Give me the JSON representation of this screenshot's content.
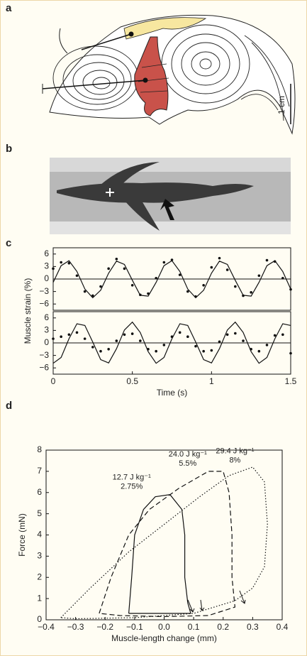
{
  "panels": [
    "a",
    "b",
    "c",
    "d"
  ],
  "scale_label": "1 cm",
  "chart_data": [
    {
      "type": "line",
      "y_label": "Muscle strain (%)",
      "x": [
        0,
        0.05,
        0.1,
        0.15,
        0.2,
        0.25,
        0.3,
        0.35,
        0.4,
        0.45,
        0.5,
        0.55,
        0.6,
        0.65,
        0.7,
        0.75,
        0.8,
        0.85,
        0.9,
        0.95,
        1.0,
        1.05,
        1.1,
        1.15,
        1.2,
        1.25,
        1.3,
        1.35,
        1.4,
        1.45,
        1.5
      ],
      "xlim": [
        0,
        1.5
      ],
      "ylim": [
        -7.5,
        7.5
      ],
      "yticks": [
        6,
        3,
        0,
        {
          "value": -3,
          "label": "−3"
        },
        {
          "value": -6,
          "label": "−6"
        }
      ],
      "zero_line": true,
      "series": [
        {
          "style": "line",
          "color": "#111",
          "values": [
            -0.8,
            3.2,
            4.4,
            1.8,
            -2.4,
            -4.5,
            -2.7,
            1.4,
            4.3,
            3.5,
            -0.3,
            -3.9,
            -4.1,
            -0.8,
            3.2,
            4.4,
            1.8,
            -2.4,
            -4.5,
            -2.7,
            1.4,
            4.3,
            3.5,
            -0.3,
            -3.9,
            -4.1,
            -0.8,
            3.2,
            4.4,
            1.8,
            -2.4
          ]
        },
        {
          "style": "dots",
          "color": "#111",
          "values": [
            2.5,
            4.0,
            3.8,
            0.8,
            -3.0,
            -4.0,
            -1.8,
            2.5,
            4.8,
            2.5,
            -1.5,
            -3.8,
            -3.5,
            0.2,
            4.0,
            4.6,
            1.0,
            -3.0,
            -4.2,
            -1.5,
            2.8,
            5.0,
            2.2,
            -1.8,
            -4.0,
            -3.2,
            0.8,
            4.5,
            4.2,
            0.2,
            -2.5
          ]
        }
      ]
    },
    {
      "type": "line",
      "x_label": "Time (s)",
      "x": [
        0,
        0.05,
        0.1,
        0.15,
        0.2,
        0.25,
        0.3,
        0.35,
        0.4,
        0.45,
        0.5,
        0.55,
        0.6,
        0.65,
        0.7,
        0.75,
        0.8,
        0.85,
        0.9,
        0.95,
        1.0,
        1.05,
        1.1,
        1.15,
        1.2,
        1.25,
        1.3,
        1.35,
        1.4,
        1.45,
        1.5
      ],
      "xlim": [
        0,
        1.5
      ],
      "xticks": [
        0,
        0.5,
        1,
        1.5
      ],
      "ylim": [
        -7.5,
        7.5
      ],
      "yticks": [
        6,
        3,
        0,
        {
          "value": -3,
          "label": "−3"
        },
        {
          "value": -6,
          "label": "−6"
        }
      ],
      "zero_line": true,
      "series": [
        {
          "style": "line",
          "color": "#111",
          "values": [
            -4.9,
            -3.5,
            1.0,
            4.6,
            4.2,
            0.2,
            -4.0,
            -4.8,
            -1.4,
            3.1,
            5.0,
            2.5,
            -2.1,
            -4.9,
            -3.5,
            1.0,
            4.6,
            4.2,
            0.2,
            -4.0,
            -4.8,
            -1.4,
            3.1,
            5.0,
            2.5,
            -2.1,
            -4.9,
            -3.5,
            1.0,
            4.6,
            4.2
          ]
        },
        {
          "style": "dots",
          "color": "#111",
          "values": [
            1.0,
            1.5,
            2.0,
            2.5,
            1.0,
            -1.0,
            -2.0,
            -1.5,
            0.5,
            2.0,
            2.2,
            0.5,
            -1.5,
            -2.0,
            -0.5,
            1.5,
            2.5,
            1.5,
            -0.8,
            -2.0,
            -1.8,
            0.3,
            2.0,
            2.3,
            0.5,
            -1.5,
            -2.0,
            -0.5,
            1.8,
            2.0,
            -2.5
          ]
        }
      ]
    },
    {
      "type": "loop",
      "x_label": "Muscle-length change (mm)",
      "y_label": "Force (mN)",
      "xlim": [
        -0.4,
        0.4
      ],
      "ylim": [
        0,
        8
      ],
      "xticks": [
        {
          "value": -0.4,
          "label": "−0.4"
        },
        {
          "value": -0.3,
          "label": "−0.3"
        },
        {
          "value": -0.2,
          "label": "−0.2"
        },
        {
          "value": -0.1,
          "label": "−0.1"
        },
        {
          "value": 0,
          "label": "0.0"
        },
        0.1,
        0.2,
        0.3,
        0.4
      ],
      "yticks": [
        0,
        1,
        2,
        3,
        4,
        5,
        6,
        7,
        8
      ],
      "series": [
        {
          "name": "12.7 J kg⁻¹",
          "sub": "2.75%",
          "dash": "solid",
          "color": "#111",
          "x": [
            -0.12,
            -0.11,
            -0.1,
            -0.07,
            -0.03,
            0.02,
            0.06,
            0.07,
            0.07,
            0.08,
            0.09,
            0.05,
            -0.05,
            -0.12
          ],
          "values": [
            0.3,
            2,
            4,
            5.2,
            5.8,
            5.9,
            5.2,
            4,
            2,
            0.8,
            0.3,
            0.3,
            0.3,
            0.3
          ]
        },
        {
          "name": "24.0 J kg⁻¹",
          "sub": "5.5%",
          "dash": "dashed",
          "color": "#111",
          "x": [
            -0.22,
            -0.18,
            -0.12,
            -0.05,
            0.05,
            0.15,
            0.2,
            0.22,
            0.23,
            0.23,
            0.24,
            0.15,
            0.0,
            -0.15,
            -0.22
          ],
          "values": [
            0.3,
            2,
            4,
            5.2,
            6.2,
            7.0,
            7.0,
            6.0,
            4,
            2,
            0.6,
            0.2,
            0.15,
            0.2,
            0.3
          ]
        },
        {
          "name": "29.4 J kg⁻¹",
          "sub": "8%",
          "dash": "dotted",
          "color": "#111",
          "x": [
            -0.35,
            -0.25,
            -0.12,
            0.0,
            0.12,
            0.22,
            0.3,
            0.34,
            0.35,
            0.34,
            0.3,
            0.24,
            0.1,
            -0.1,
            -0.3,
            -0.35
          ],
          "values": [
            0.1,
            1.5,
            3.2,
            4.5,
            5.8,
            6.8,
            7.2,
            6.5,
            4.5,
            2.5,
            1.5,
            0.9,
            0.3,
            0.1,
            0.05,
            0.1
          ]
        }
      ]
    }
  ]
}
